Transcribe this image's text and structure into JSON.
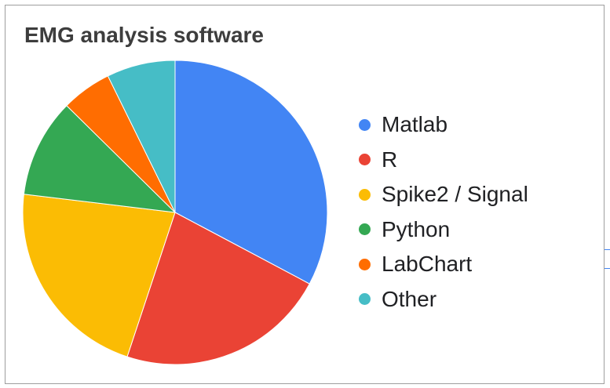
{
  "chart_data": {
    "type": "pie",
    "title": "EMG analysis software",
    "legend_position": "right",
    "start_angle_deg": 0,
    "direction": "clockwise",
    "slices": [
      {
        "label": "Matlab",
        "value": 33.8,
        "color": "#4285f4"
      },
      {
        "label": "R",
        "value": 23.0,
        "color": "#ea4335"
      },
      {
        "label": "Spike2 / Signal",
        "value": 22.5,
        "color": "#fbbc04"
      },
      {
        "label": "Python",
        "value": 10.8,
        "color": "#34a853"
      },
      {
        "label": "LabChart",
        "value": 5.5,
        "color": "#ff6d01"
      },
      {
        "label": "Other",
        "value": 7.5,
        "color": "#46bdc6"
      }
    ]
  }
}
